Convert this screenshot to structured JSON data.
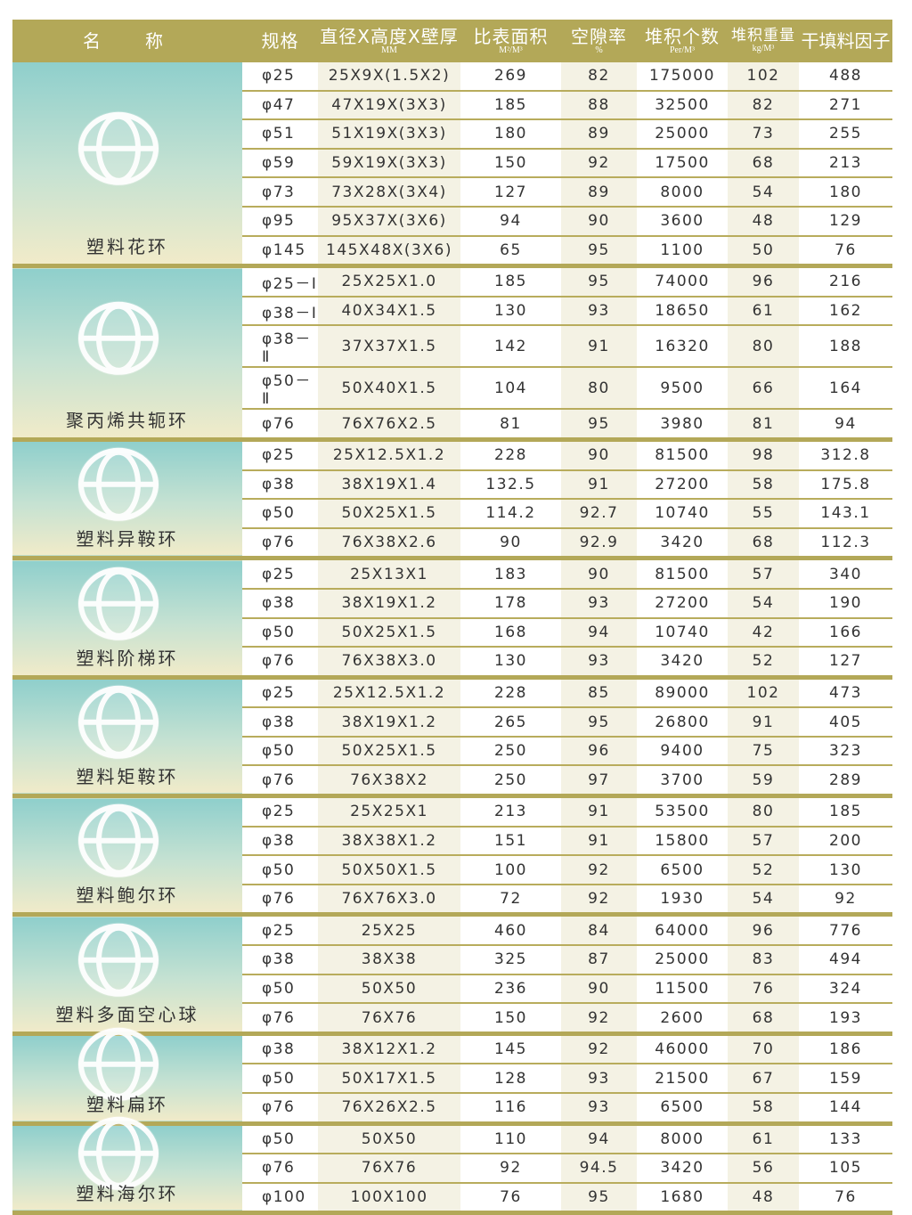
{
  "header": {
    "name": "名称",
    "spec": "规格",
    "dims": "直径X高度X壁厚",
    "dims_unit": "MM",
    "area": "比表面积",
    "area_unit": "M²/M³",
    "void": "空隙率",
    "void_unit": "%",
    "count": "堆积个数",
    "count_unit": "Per/M³",
    "weight": "堆积重量",
    "weight_unit": "kg/M³",
    "factor": "干填料因子"
  },
  "colors": {
    "header_bg": "#b3a858",
    "rule": "#b8ac5c",
    "shade": "#f4f2e4",
    "panel_top": "#8fcfcc",
    "panel_bottom": "#f1ebc9"
  },
  "groups": [
    {
      "name": "塑料花环",
      "icon": "rosette-ring-icon",
      "rows": [
        [
          "φ25",
          "25X9X(1.5X2)",
          "269",
          "82",
          "175000",
          "102",
          "488"
        ],
        [
          "φ47",
          "47X19X(3X3)",
          "185",
          "88",
          "32500",
          "82",
          "271"
        ],
        [
          "φ51",
          "51X19X(3X3)",
          "180",
          "89",
          "25000",
          "73",
          "255"
        ],
        [
          "φ59",
          "59X19X(3X3)",
          "150",
          "92",
          "17500",
          "68",
          "213"
        ],
        [
          "φ73",
          "73X28X(3X4)",
          "127",
          "89",
          "8000",
          "54",
          "180"
        ],
        [
          "φ95",
          "95X37X(3X6)",
          "94",
          "90",
          "3600",
          "48",
          "129"
        ],
        [
          "φ145",
          "145X48X(3X6)",
          "65",
          "95",
          "1100",
          "50",
          "76"
        ]
      ]
    },
    {
      "name": "聚丙烯共轭环",
      "icon": "conjugate-ring-icon",
      "rows": [
        [
          "φ25－Ⅰ",
          "25X25X1.0",
          "185",
          "95",
          "74000",
          "96",
          "216"
        ],
        [
          "φ38－Ⅰ",
          "40X34X1.5",
          "130",
          "93",
          "18650",
          "61",
          "162"
        ],
        [
          "φ38－Ⅱ",
          "37X37X1.5",
          "142",
          "91",
          "16320",
          "80",
          "188"
        ],
        [
          "φ50－Ⅱ",
          "50X40X1.5",
          "104",
          "80",
          "9500",
          "66",
          "164"
        ],
        [
          "φ76",
          "76X76X2.5",
          "81",
          "95",
          "3980",
          "81",
          "94"
        ]
      ]
    },
    {
      "name": "塑料异鞍环",
      "icon": "saddle-ring-icon",
      "rows": [
        [
          "φ25",
          "25X12.5X1.2",
          "228",
          "90",
          "81500",
          "98",
          "312.8"
        ],
        [
          "φ38",
          "38X19X1.4",
          "132.5",
          "91",
          "27200",
          "58",
          "175.8"
        ],
        [
          "φ50",
          "50X25X1.5",
          "114.2",
          "92.7",
          "10740",
          "55",
          "143.1"
        ],
        [
          "φ76",
          "76X38X2.6",
          "90",
          "92.9",
          "3420",
          "68",
          "112.3"
        ]
      ]
    },
    {
      "name": "塑料阶梯环",
      "icon": "cascade-ring-icon",
      "rows": [
        [
          "φ25",
          "25X13X1",
          "183",
          "90",
          "81500",
          "57",
          "340"
        ],
        [
          "φ38",
          "38X19X1.2",
          "178",
          "93",
          "27200",
          "54",
          "190"
        ],
        [
          "φ50",
          "50X25X1.5",
          "168",
          "94",
          "10740",
          "42",
          "166"
        ],
        [
          "φ76",
          "76X38X3.0",
          "130",
          "93",
          "3420",
          "52",
          "127"
        ]
      ]
    },
    {
      "name": "塑料矩鞍环",
      "icon": "intalox-saddle-icon",
      "rows": [
        [
          "φ25",
          "25X12.5X1.2",
          "228",
          "85",
          "89000",
          "102",
          "473"
        ],
        [
          "φ38",
          "38X19X1.2",
          "265",
          "95",
          "26800",
          "91",
          "405"
        ],
        [
          "φ50",
          "50X25X1.5",
          "250",
          "96",
          "9400",
          "75",
          "323"
        ],
        [
          "φ76",
          "76X38X2",
          "250",
          "97",
          "3700",
          "59",
          "289"
        ]
      ]
    },
    {
      "name": "塑料鲍尔环",
      "icon": "pall-ring-icon",
      "rows": [
        [
          "φ25",
          "25X25X1",
          "213",
          "91",
          "53500",
          "80",
          "185"
        ],
        [
          "φ38",
          "38X38X1.2",
          "151",
          "91",
          "15800",
          "57",
          "200"
        ],
        [
          "φ50",
          "50X50X1.5",
          "100",
          "92",
          "6500",
          "52",
          "130"
        ],
        [
          "φ76",
          "76X76X3.0",
          "72",
          "92",
          "1930",
          "54",
          "92"
        ]
      ]
    },
    {
      "name": "塑料多面空心球",
      "icon": "hollow-ball-icon",
      "rows": [
        [
          "φ25",
          "25X25",
          "460",
          "84",
          "64000",
          "96",
          "776"
        ],
        [
          "φ38",
          "38X38",
          "325",
          "87",
          "25000",
          "83",
          "494"
        ],
        [
          "φ50",
          "50X50",
          "236",
          "90",
          "11500",
          "76",
          "324"
        ],
        [
          "φ76",
          "76X76",
          "150",
          "92",
          "2600",
          "68",
          "193"
        ]
      ]
    },
    {
      "name": "塑料扁环",
      "icon": "flat-ring-icon",
      "rows": [
        [
          "φ38",
          "38X12X1.2",
          "145",
          "92",
          "46000",
          "70",
          "186"
        ],
        [
          "φ50",
          "50X17X1.5",
          "128",
          "93",
          "21500",
          "67",
          "159"
        ],
        [
          "φ76",
          "76X26X2.5",
          "116",
          "93",
          "6500",
          "58",
          "144"
        ]
      ]
    },
    {
      "name": "塑料海尔环",
      "icon": "heilex-ring-icon",
      "rows": [
        [
          "φ50",
          "50X50",
          "110",
          "94",
          "8000",
          "61",
          "133"
        ],
        [
          "φ76",
          "76X76",
          "92",
          "94.5",
          "3420",
          "56",
          "105"
        ],
        [
          "φ100",
          "100X100",
          "76",
          "95",
          "1680",
          "48",
          "76"
        ]
      ]
    }
  ]
}
